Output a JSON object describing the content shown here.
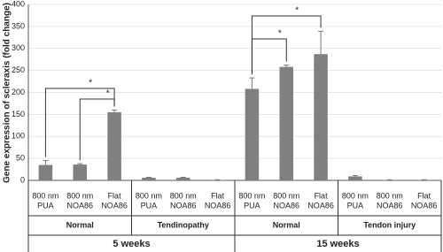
{
  "chart_data": {
    "type": "bar",
    "y_label": "Gene expression of scleraxis (fold change)",
    "categories": [
      [
        "800 nm",
        "PUA"
      ],
      [
        "800 nm",
        "NOA86"
      ],
      [
        "Flat",
        "NOA86"
      ],
      [
        "800 nm",
        "PUA"
      ],
      [
        "800 nm",
        "NOA86"
      ],
      [
        "Flat",
        "NOA86"
      ],
      [
        "800 nm",
        "PUA"
      ],
      [
        "800 nm",
        "NOA86"
      ],
      [
        "Flat",
        "NOA86"
      ],
      [
        "800 nm",
        "PUA"
      ],
      [
        "800 nm",
        "NOA86"
      ],
      [
        "Flat",
        "NOA86"
      ]
    ],
    "groups": [
      "Normal",
      "Tendinopathy",
      "Normal",
      "Tendon injury"
    ],
    "supergroups": [
      "5 weeks",
      "15 weeks"
    ],
    "values": [
      35,
      36,
      155,
      6,
      6,
      1,
      208,
      258,
      287,
      9,
      1,
      1
    ],
    "errors": [
      10,
      2,
      5,
      1,
      1,
      0.5,
      25,
      4,
      52,
      2,
      0.5,
      0.5
    ],
    "color": "#808080",
    "ylim": [
      0,
      400
    ],
    "yticks": [
      0,
      50,
      100,
      150,
      200,
      250,
      300,
      350,
      400
    ],
    "grid": true,
    "annotations": [
      {
        "label": "*",
        "from": 0,
        "to": 2
      },
      {
        "label": "*",
        "from": 1,
        "to": 2
      },
      {
        "label": "*",
        "from": 6,
        "to": 8
      },
      {
        "label": "*",
        "from": 6,
        "to": 7
      }
    ]
  }
}
